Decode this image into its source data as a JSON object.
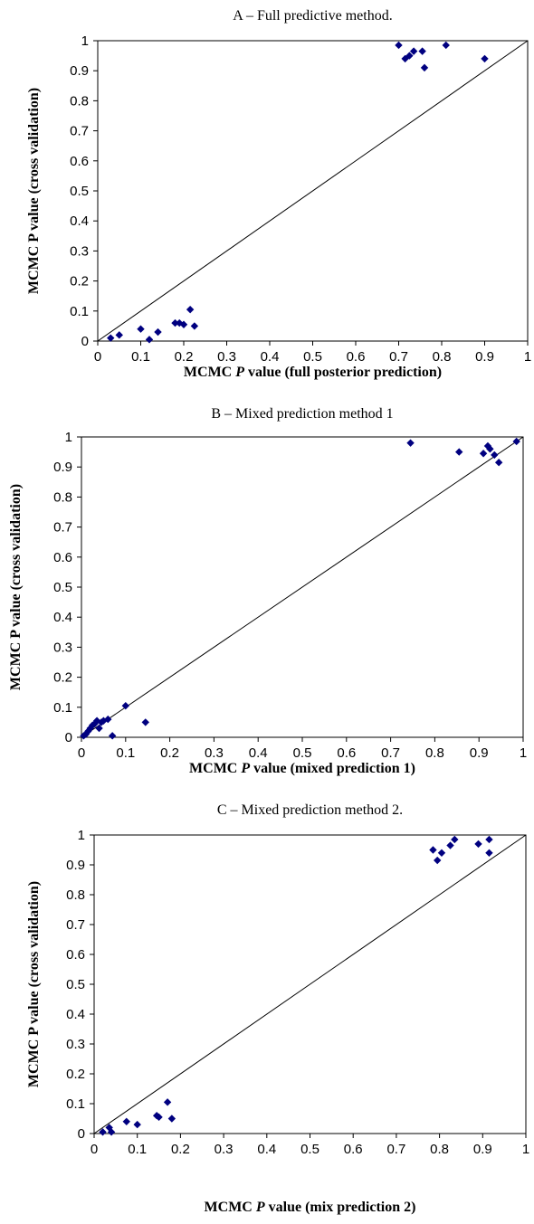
{
  "chart_data": [
    {
      "type": "scatter",
      "title": "A – Full predictive method.",
      "xlabel": "MCMC ",
      "xlabel_italic": "P",
      "xlabel_rest": " value (full posterior prediction)",
      "ylabel": "MCMC P value (cross validation)",
      "xlim": [
        0,
        1
      ],
      "ylim": [
        0,
        1
      ],
      "x_ticks": [
        "0",
        "0.1",
        "0.2",
        "0.3",
        "0.4",
        "0.5",
        "0.6",
        "0.7",
        "0.8",
        "0.9",
        "1"
      ],
      "y_ticks": [
        "0",
        "0.1",
        "0.2",
        "0.3",
        "0.4",
        "0.5",
        "0.6",
        "0.7",
        "0.8",
        "0.9",
        "1"
      ],
      "reference_line": "y = x",
      "marker_color": "#000080",
      "points": [
        {
          "x": 0.03,
          "y": 0.01
        },
        {
          "x": 0.05,
          "y": 0.02
        },
        {
          "x": 0.1,
          "y": 0.04
        },
        {
          "x": 0.12,
          "y": 0.005
        },
        {
          "x": 0.14,
          "y": 0.03
        },
        {
          "x": 0.18,
          "y": 0.06
        },
        {
          "x": 0.19,
          "y": 0.06
        },
        {
          "x": 0.2,
          "y": 0.055
        },
        {
          "x": 0.215,
          "y": 0.105
        },
        {
          "x": 0.225,
          "y": 0.05
        },
        {
          "x": 0.7,
          "y": 0.985
        },
        {
          "x": 0.715,
          "y": 0.94
        },
        {
          "x": 0.725,
          "y": 0.95
        },
        {
          "x": 0.735,
          "y": 0.965
        },
        {
          "x": 0.755,
          "y": 0.965
        },
        {
          "x": 0.76,
          "y": 0.91
        },
        {
          "x": 0.81,
          "y": 0.985
        },
        {
          "x": 0.9,
          "y": 0.94
        }
      ]
    },
    {
      "type": "scatter",
      "title": "B – Mixed prediction method 1",
      "xlabel": "MCMC ",
      "xlabel_italic": "P",
      "xlabel_rest": " value (mixed prediction 1)",
      "ylabel": "MCMC P value (cross validation)",
      "xlim": [
        0,
        1
      ],
      "ylim": [
        0,
        1
      ],
      "x_ticks": [
        "0",
        "0.1",
        "0.2",
        "0.3",
        "0.4",
        "0.5",
        "0.6",
        "0.7",
        "0.8",
        "0.9",
        "1"
      ],
      "y_ticks": [
        "0",
        "0.1",
        "0.2",
        "0.3",
        "0.4",
        "0.5",
        "0.6",
        "0.7",
        "0.8",
        "0.9",
        "1"
      ],
      "reference_line": "y = x",
      "marker_color": "#000080",
      "points": [
        {
          "x": 0.005,
          "y": 0.005
        },
        {
          "x": 0.01,
          "y": 0.01
        },
        {
          "x": 0.015,
          "y": 0.02
        },
        {
          "x": 0.02,
          "y": 0.03
        },
        {
          "x": 0.025,
          "y": 0.04
        },
        {
          "x": 0.03,
          "y": 0.045
        },
        {
          "x": 0.035,
          "y": 0.055
        },
        {
          "x": 0.04,
          "y": 0.03
        },
        {
          "x": 0.045,
          "y": 0.05
        },
        {
          "x": 0.05,
          "y": 0.055
        },
        {
          "x": 0.06,
          "y": 0.06
        },
        {
          "x": 0.07,
          "y": 0.005
        },
        {
          "x": 0.1,
          "y": 0.105
        },
        {
          "x": 0.145,
          "y": 0.05
        },
        {
          "x": 0.745,
          "y": 0.98
        },
        {
          "x": 0.855,
          "y": 0.95
        },
        {
          "x": 0.91,
          "y": 0.945
        },
        {
          "x": 0.92,
          "y": 0.97
        },
        {
          "x": 0.925,
          "y": 0.96
        },
        {
          "x": 0.935,
          "y": 0.94
        },
        {
          "x": 0.945,
          "y": 0.915
        },
        {
          "x": 0.985,
          "y": 0.985
        }
      ]
    },
    {
      "type": "scatter",
      "title": "C – Mixed prediction method 2.",
      "xlabel": "MCMC ",
      "xlabel_italic": "P",
      "xlabel_rest": " value  (mix prediction 2)",
      "ylabel": "MCMC P value (cross validation)",
      "xlim": [
        0,
        1
      ],
      "ylim": [
        0,
        1
      ],
      "x_ticks": [
        "0",
        "0.1",
        "0.2",
        "0.3",
        "0.4",
        "0.5",
        "0.6",
        "0.7",
        "0.8",
        "0.9",
        "1"
      ],
      "y_ticks": [
        "0",
        "0.1",
        "0.2",
        "0.3",
        "0.4",
        "0.5",
        "0.6",
        "0.7",
        "0.8",
        "0.9",
        "1"
      ],
      "reference_line": "y = x",
      "marker_color": "#000080",
      "points": [
        {
          "x": 0.02,
          "y": 0.005
        },
        {
          "x": 0.035,
          "y": 0.02
        },
        {
          "x": 0.04,
          "y": 0.005
        },
        {
          "x": 0.075,
          "y": 0.04
        },
        {
          "x": 0.1,
          "y": 0.03
        },
        {
          "x": 0.145,
          "y": 0.06
        },
        {
          "x": 0.15,
          "y": 0.055
        },
        {
          "x": 0.17,
          "y": 0.105
        },
        {
          "x": 0.18,
          "y": 0.05
        },
        {
          "x": 0.785,
          "y": 0.95
        },
        {
          "x": 0.795,
          "y": 0.915
        },
        {
          "x": 0.805,
          "y": 0.94
        },
        {
          "x": 0.825,
          "y": 0.965
        },
        {
          "x": 0.835,
          "y": 0.985
        },
        {
          "x": 0.89,
          "y": 0.97
        },
        {
          "x": 0.915,
          "y": 0.985
        },
        {
          "x": 0.915,
          "y": 0.94
        }
      ]
    }
  ]
}
